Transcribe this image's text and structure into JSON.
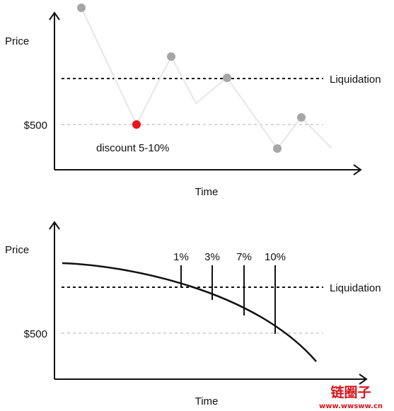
{
  "top_chart": {
    "y_label": "Price",
    "x_label": "Time",
    "liquidation_label": "Liquidation",
    "price_label": "$500",
    "annotation": "discount 5-10%",
    "colors": {
      "axis": "#111111",
      "path": "#e6e6e6",
      "point": "#a6a6a6",
      "highlight": "#e8141b",
      "dashed_black": "#111111",
      "dashed_grey": "#c8c8c8"
    }
  },
  "bottom_chart": {
    "y_label": "Price",
    "x_label": "Time",
    "liquidation_label": "Liquidation",
    "price_label": "$500",
    "markers": [
      {
        "label": "1%"
      },
      {
        "label": "3%"
      },
      {
        "label": "7%"
      },
      {
        "label": "10%"
      }
    ]
  },
  "watermark": {
    "logo_text": "链圈子",
    "url_text": "www.wwsww.cn",
    "color": "#d8141b"
  }
}
